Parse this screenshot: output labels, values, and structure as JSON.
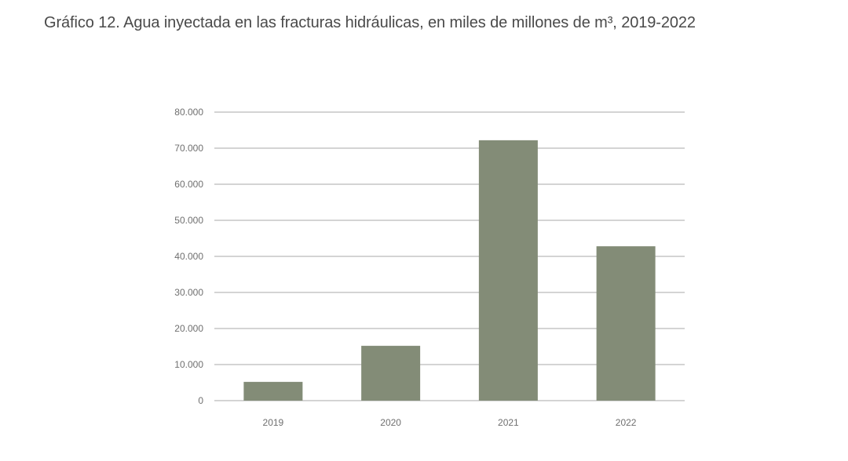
{
  "chart_data": {
    "type": "bar",
    "title": "Gráfico 12. Agua inyectada en las fracturas hidráulicas, en miles de millones de m³, 2019-2022",
    "categories": [
      "2019",
      "2020",
      "2021",
      "2022"
    ],
    "values": [
      5200,
      15200,
      72200,
      42800
    ],
    "ylim": [
      0,
      80000
    ],
    "yticks": [
      0,
      10000,
      20000,
      30000,
      40000,
      50000,
      60000,
      70000,
      80000
    ],
    "ytick_labels": [
      "0",
      "10.000",
      "20.000",
      "30.000",
      "40.000",
      "50.000",
      "60.000",
      "70.000",
      "80.000"
    ],
    "xlabel": "",
    "ylabel": "",
    "grid": true,
    "legend": "none",
    "bar_color": "#838c77"
  }
}
